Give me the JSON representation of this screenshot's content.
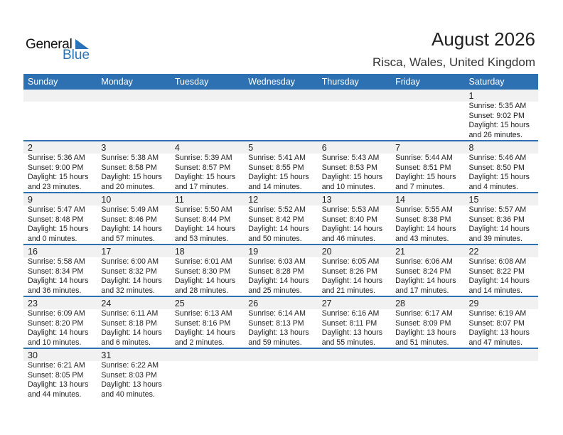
{
  "logo": {
    "word1": "General",
    "word2": "Blue",
    "accent": "#2a73b8"
  },
  "header": {
    "title": "August 2026",
    "location": "Risca, Wales, United Kingdom"
  },
  "colors": {
    "header_bg": "#2e71b3",
    "day_band": "#f1f1f1"
  },
  "weekdays": [
    "Sunday",
    "Monday",
    "Tuesday",
    "Wednesday",
    "Thursday",
    "Friday",
    "Saturday"
  ],
  "weeks": [
    [
      null,
      null,
      null,
      null,
      null,
      null,
      {
        "day": "1",
        "sunrise": "Sunrise: 5:35 AM",
        "sunset": "Sunset: 9:02 PM",
        "daylight": "Daylight: 15 hours",
        "minutes": "and 26 minutes."
      }
    ],
    [
      {
        "day": "2",
        "sunrise": "Sunrise: 5:36 AM",
        "sunset": "Sunset: 9:00 PM",
        "daylight": "Daylight: 15 hours",
        "minutes": "and 23 minutes."
      },
      {
        "day": "3",
        "sunrise": "Sunrise: 5:38 AM",
        "sunset": "Sunset: 8:58 PM",
        "daylight": "Daylight: 15 hours",
        "minutes": "and 20 minutes."
      },
      {
        "day": "4",
        "sunrise": "Sunrise: 5:39 AM",
        "sunset": "Sunset: 8:57 PM",
        "daylight": "Daylight: 15 hours",
        "minutes": "and 17 minutes."
      },
      {
        "day": "5",
        "sunrise": "Sunrise: 5:41 AM",
        "sunset": "Sunset: 8:55 PM",
        "daylight": "Daylight: 15 hours",
        "minutes": "and 14 minutes."
      },
      {
        "day": "6",
        "sunrise": "Sunrise: 5:43 AM",
        "sunset": "Sunset: 8:53 PM",
        "daylight": "Daylight: 15 hours",
        "minutes": "and 10 minutes."
      },
      {
        "day": "7",
        "sunrise": "Sunrise: 5:44 AM",
        "sunset": "Sunset: 8:51 PM",
        "daylight": "Daylight: 15 hours",
        "minutes": "and 7 minutes."
      },
      {
        "day": "8",
        "sunrise": "Sunrise: 5:46 AM",
        "sunset": "Sunset: 8:50 PM",
        "daylight": "Daylight: 15 hours",
        "minutes": "and 4 minutes."
      }
    ],
    [
      {
        "day": "9",
        "sunrise": "Sunrise: 5:47 AM",
        "sunset": "Sunset: 8:48 PM",
        "daylight": "Daylight: 15 hours",
        "minutes": "and 0 minutes."
      },
      {
        "day": "10",
        "sunrise": "Sunrise: 5:49 AM",
        "sunset": "Sunset: 8:46 PM",
        "daylight": "Daylight: 14 hours",
        "minutes": "and 57 minutes."
      },
      {
        "day": "11",
        "sunrise": "Sunrise: 5:50 AM",
        "sunset": "Sunset: 8:44 PM",
        "daylight": "Daylight: 14 hours",
        "minutes": "and 53 minutes."
      },
      {
        "day": "12",
        "sunrise": "Sunrise: 5:52 AM",
        "sunset": "Sunset: 8:42 PM",
        "daylight": "Daylight: 14 hours",
        "minutes": "and 50 minutes."
      },
      {
        "day": "13",
        "sunrise": "Sunrise: 5:53 AM",
        "sunset": "Sunset: 8:40 PM",
        "daylight": "Daylight: 14 hours",
        "minutes": "and 46 minutes."
      },
      {
        "day": "14",
        "sunrise": "Sunrise: 5:55 AM",
        "sunset": "Sunset: 8:38 PM",
        "daylight": "Daylight: 14 hours",
        "minutes": "and 43 minutes."
      },
      {
        "day": "15",
        "sunrise": "Sunrise: 5:57 AM",
        "sunset": "Sunset: 8:36 PM",
        "daylight": "Daylight: 14 hours",
        "minutes": "and 39 minutes."
      }
    ],
    [
      {
        "day": "16",
        "sunrise": "Sunrise: 5:58 AM",
        "sunset": "Sunset: 8:34 PM",
        "daylight": "Daylight: 14 hours",
        "minutes": "and 36 minutes."
      },
      {
        "day": "17",
        "sunrise": "Sunrise: 6:00 AM",
        "sunset": "Sunset: 8:32 PM",
        "daylight": "Daylight: 14 hours",
        "minutes": "and 32 minutes."
      },
      {
        "day": "18",
        "sunrise": "Sunrise: 6:01 AM",
        "sunset": "Sunset: 8:30 PM",
        "daylight": "Daylight: 14 hours",
        "minutes": "and 28 minutes."
      },
      {
        "day": "19",
        "sunrise": "Sunrise: 6:03 AM",
        "sunset": "Sunset: 8:28 PM",
        "daylight": "Daylight: 14 hours",
        "minutes": "and 25 minutes."
      },
      {
        "day": "20",
        "sunrise": "Sunrise: 6:05 AM",
        "sunset": "Sunset: 8:26 PM",
        "daylight": "Daylight: 14 hours",
        "minutes": "and 21 minutes."
      },
      {
        "day": "21",
        "sunrise": "Sunrise: 6:06 AM",
        "sunset": "Sunset: 8:24 PM",
        "daylight": "Daylight: 14 hours",
        "minutes": "and 17 minutes."
      },
      {
        "day": "22",
        "sunrise": "Sunrise: 6:08 AM",
        "sunset": "Sunset: 8:22 PM",
        "daylight": "Daylight: 14 hours",
        "minutes": "and 14 minutes."
      }
    ],
    [
      {
        "day": "23",
        "sunrise": "Sunrise: 6:09 AM",
        "sunset": "Sunset: 8:20 PM",
        "daylight": "Daylight: 14 hours",
        "minutes": "and 10 minutes."
      },
      {
        "day": "24",
        "sunrise": "Sunrise: 6:11 AM",
        "sunset": "Sunset: 8:18 PM",
        "daylight": "Daylight: 14 hours",
        "minutes": "and 6 minutes."
      },
      {
        "day": "25",
        "sunrise": "Sunrise: 6:13 AM",
        "sunset": "Sunset: 8:16 PM",
        "daylight": "Daylight: 14 hours",
        "minutes": "and 2 minutes."
      },
      {
        "day": "26",
        "sunrise": "Sunrise: 6:14 AM",
        "sunset": "Sunset: 8:13 PM",
        "daylight": "Daylight: 13 hours",
        "minutes": "and 59 minutes."
      },
      {
        "day": "27",
        "sunrise": "Sunrise: 6:16 AM",
        "sunset": "Sunset: 8:11 PM",
        "daylight": "Daylight: 13 hours",
        "minutes": "and 55 minutes."
      },
      {
        "day": "28",
        "sunrise": "Sunrise: 6:17 AM",
        "sunset": "Sunset: 8:09 PM",
        "daylight": "Daylight: 13 hours",
        "minutes": "and 51 minutes."
      },
      {
        "day": "29",
        "sunrise": "Sunrise: 6:19 AM",
        "sunset": "Sunset: 8:07 PM",
        "daylight": "Daylight: 13 hours",
        "minutes": "and 47 minutes."
      }
    ],
    [
      {
        "day": "30",
        "sunrise": "Sunrise: 6:21 AM",
        "sunset": "Sunset: 8:05 PM",
        "daylight": "Daylight: 13 hours",
        "minutes": "and 44 minutes."
      },
      {
        "day": "31",
        "sunrise": "Sunrise: 6:22 AM",
        "sunset": "Sunset: 8:03 PM",
        "daylight": "Daylight: 13 hours",
        "minutes": "and 40 minutes."
      },
      null,
      null,
      null,
      null,
      null
    ]
  ]
}
